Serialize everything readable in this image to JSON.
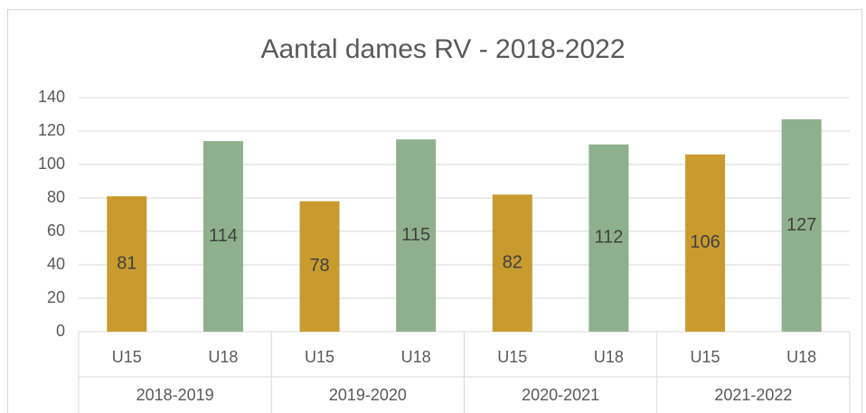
{
  "chart_data": {
    "type": "bar",
    "title": "Aantal dames RV - 2018-2022",
    "groups": [
      {
        "name": "2018-2019",
        "categories": [
          "U15",
          "U18"
        ],
        "values": [
          81,
          114
        ]
      },
      {
        "name": "2019-2020",
        "categories": [
          "U15",
          "U18"
        ],
        "values": [
          78,
          115
        ]
      },
      {
        "name": "2020-2021",
        "categories": [
          "U15",
          "U18"
        ],
        "values": [
          82,
          112
        ]
      },
      {
        "name": "2021-2022",
        "categories": [
          "U15",
          "U18"
        ],
        "values": [
          106,
          127
        ]
      }
    ],
    "colors": [
      "#c99b2f",
      "#8fb08c"
    ],
    "ylim": [
      0,
      140
    ],
    "yticks": [
      0,
      20,
      40,
      60,
      80,
      100,
      120,
      140
    ],
    "grid": true
  }
}
